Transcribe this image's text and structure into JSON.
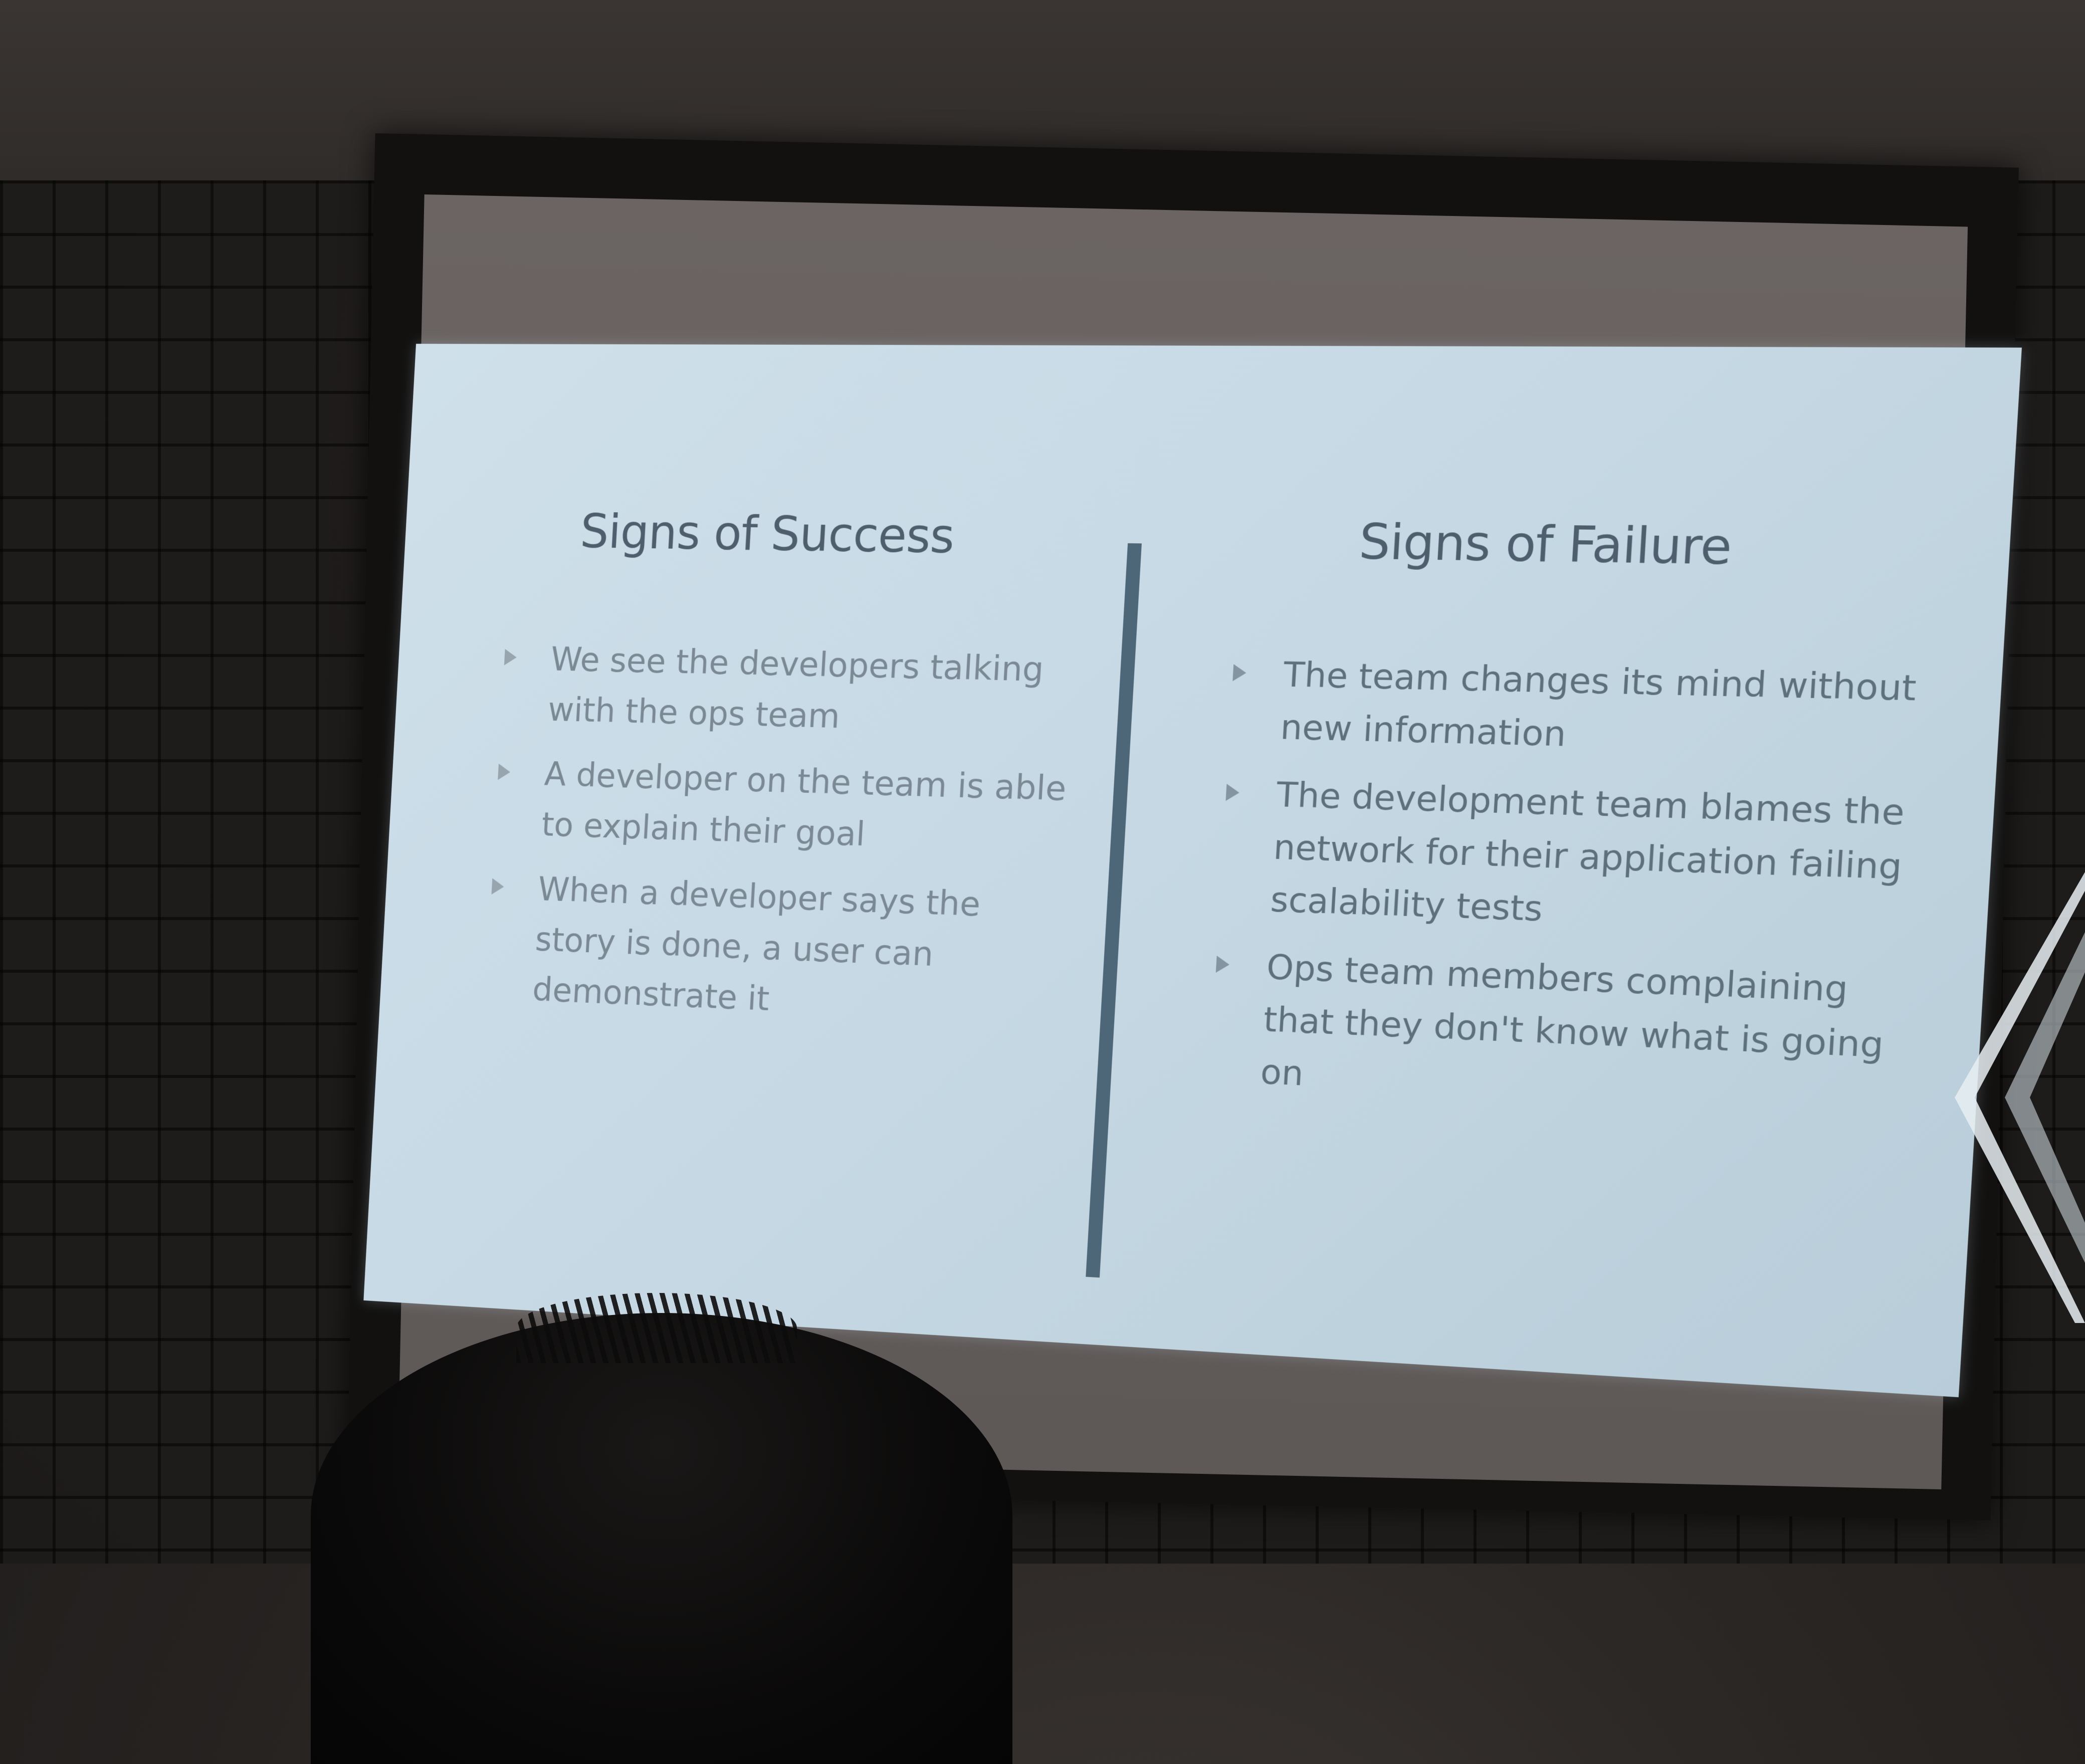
{
  "slide": {
    "left_title": "Signs of Success",
    "right_title": "Signs of Failure",
    "left_bullets": [
      "We see the developers talking with the ops team",
      "A developer on the team is able to explain their goal",
      "When a developer says the story is done, a user can demonstrate it"
    ],
    "right_bullets": [
      "The team changes its mind without new information",
      "The development team blames the network for their application failing scalability tests",
      "Ops team members complaining that they don't know what is going on"
    ],
    "background_color": "#c8dae6",
    "text_color": "#5f707d",
    "divider_color": "#4d6778"
  }
}
